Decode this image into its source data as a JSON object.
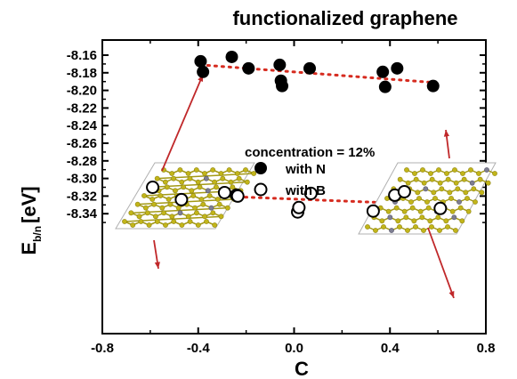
{
  "chart_data": {
    "type": "scatter",
    "title": "functionalized graphene",
    "xlabel": "C",
    "ylabel_main": "E",
    "ylabel_sub": "b/n",
    "ylabel_unit": "[eV]",
    "xlim": [
      -0.8,
      0.8
    ],
    "ylim": [
      -8.35,
      -8.15
    ],
    "xticks": [
      -0.8,
      -0.4,
      0.0,
      0.4,
      0.8
    ],
    "xtick_labels": [
      "-0.8",
      "-0.4",
      "0.0",
      "0.4",
      "0.8"
    ],
    "yticks": [
      -8.16,
      -8.18,
      -8.2,
      -8.22,
      -8.24,
      -8.26,
      -8.28,
      -8.3,
      -8.32,
      -8.34
    ],
    "ytick_labels": [
      "-8.16",
      "-8.18",
      "-8.20",
      "-8.22",
      "-8.24",
      "-8.26",
      "-8.28",
      "-8.30",
      "-8.32",
      "-8.34"
    ],
    "grid": false,
    "legend_title": "concentration = 12%",
    "series": [
      {
        "name": "with N",
        "marker": "filled-circle",
        "color": "#000000",
        "points": [
          [
            -0.39,
            -8.167
          ],
          [
            -0.38,
            -8.179
          ],
          [
            -0.26,
            -8.162
          ],
          [
            -0.19,
            -8.175
          ],
          [
            -0.06,
            -8.171
          ],
          [
            -0.055,
            -8.189
          ],
          [
            -0.05,
            -8.195
          ],
          [
            0.065,
            -8.175
          ],
          [
            0.37,
            -8.179
          ],
          [
            0.38,
            -8.196
          ],
          [
            0.43,
            -8.175
          ],
          [
            0.58,
            -8.195
          ]
        ],
        "trend": [
          [
            -0.39,
            -8.171
          ],
          [
            0.58,
            -8.191
          ]
        ]
      },
      {
        "name": "with B",
        "marker": "open-circle",
        "color": "#000000",
        "points": [
          [
            -0.59,
            -8.31
          ],
          [
            -0.47,
            -8.324
          ],
          [
            -0.29,
            -8.316
          ],
          [
            -0.24,
            -8.319
          ],
          [
            -0.235,
            -8.32
          ],
          [
            0.015,
            -8.338
          ],
          [
            0.02,
            -8.333
          ],
          [
            0.07,
            -8.317
          ],
          [
            0.33,
            -8.337
          ],
          [
            0.42,
            -8.319
          ],
          [
            0.46,
            -8.315
          ],
          [
            0.61,
            -8.334
          ]
        ],
        "trend": [
          [
            -0.59,
            -8.317
          ],
          [
            0.61,
            -8.33
          ]
        ]
      }
    ],
    "trend_color": "#d62b1f",
    "arrow_color": "#c0282a",
    "colors": {
      "carbon": "#c2b51a",
      "dopant": "#7e7e92",
      "bond": "#a39916"
    }
  }
}
